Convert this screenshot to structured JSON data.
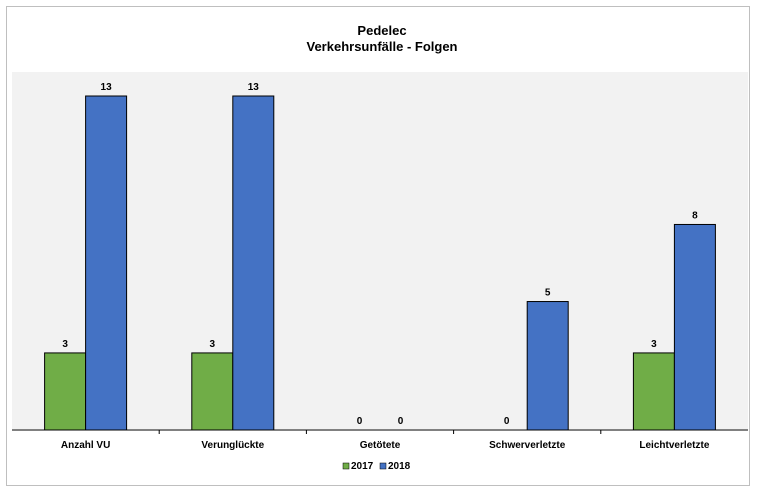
{
  "chart_data": {
    "type": "bar",
    "title": "Pedelec",
    "subtitle": "Verkehrsunfälle - Folgen",
    "xlabel": "",
    "ylabel": "",
    "categories": [
      "Anzahl VU",
      "Verunglückte",
      "Getötete",
      "Schwerverletzte",
      "Leichtverletzte"
    ],
    "series": [
      {
        "name": "2017",
        "values": [
          3,
          3,
          0,
          0,
          3
        ],
        "color": "#70ad47"
      },
      {
        "name": "2018",
        "values": [
          13,
          13,
          0,
          5,
          8
        ],
        "color": "#4472c4"
      }
    ],
    "ylim": [
      0,
      13
    ],
    "grid": false,
    "legend_position": "bottom",
    "plot_background": "#f2f2f2",
    "show_data_labels": true
  }
}
